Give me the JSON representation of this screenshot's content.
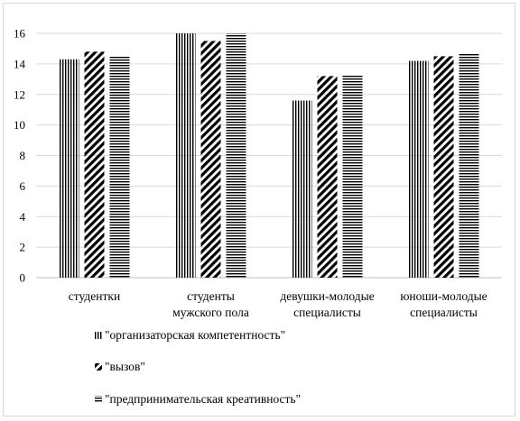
{
  "chart_data": {
    "type": "bar",
    "categories": [
      [
        "студентки"
      ],
      [
        "студенты",
        "мужского  пола"
      ],
      [
        "девушки-молодые",
        "специалисты"
      ],
      [
        "юноши-молодые",
        "специалисты"
      ]
    ],
    "series": [
      {
        "name": "\"организаторская компетентность\"",
        "pattern": "vertical",
        "values": [
          14.3,
          16.0,
          11.6,
          14.2
        ]
      },
      {
        "name": "\"вызов\"",
        "pattern": "diagonal",
        "values": [
          14.8,
          15.5,
          13.2,
          14.5
        ]
      },
      {
        "name": "\"предпринимательская креативность\"",
        "pattern": "horizontal",
        "values": [
          14.5,
          16.0,
          13.3,
          14.7
        ]
      }
    ],
    "ylim": [
      0,
      16
    ],
    "yticks": [
      0,
      2,
      4,
      6,
      8,
      10,
      12,
      14,
      16
    ],
    "grid": true,
    "legend": "bottom",
    "colors": {
      "bar": "#000000",
      "grid": "#d9d9d9",
      "axis": "#bfbfbf"
    }
  }
}
